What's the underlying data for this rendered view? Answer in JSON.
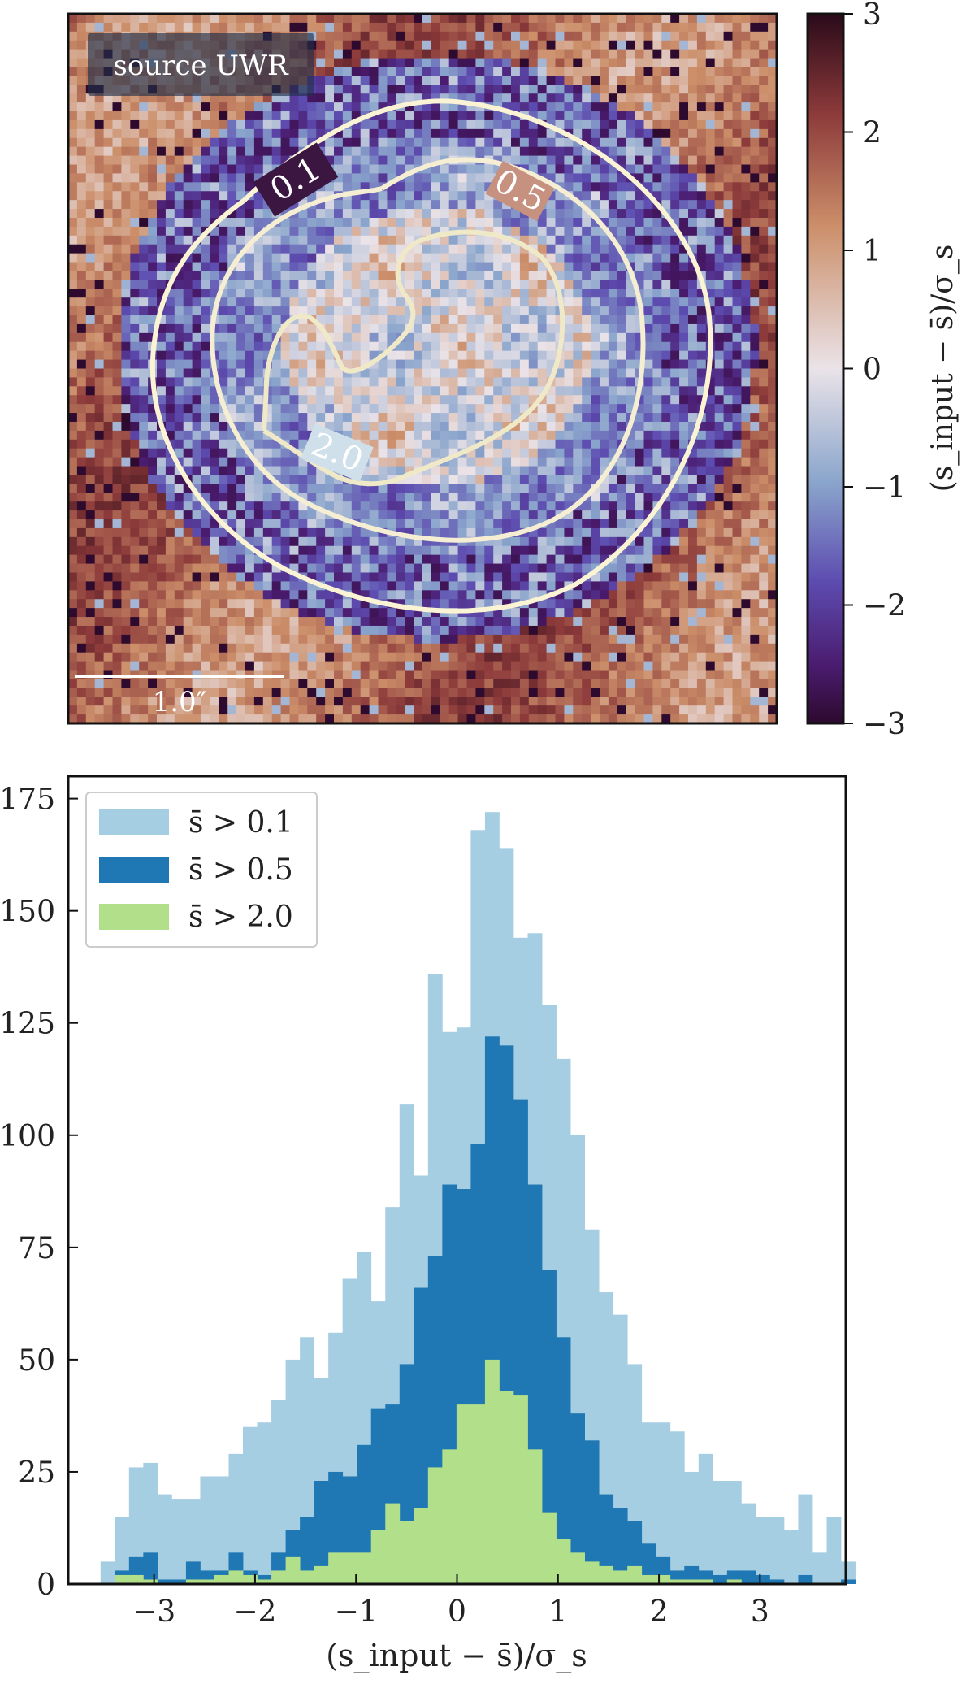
{
  "chart_data": [
    {
      "type": "heatmap",
      "panel_label": "source UWR",
      "colorbar": {
        "label": "(s_input − s̄)/σ_s",
        "range": [
          -3,
          3
        ],
        "ticks": [
          3,
          2,
          1,
          0,
          -1,
          -2,
          -3
        ],
        "tick_labels": [
          "3",
          "2",
          "1",
          "0",
          "−1",
          "−2",
          "−3"
        ],
        "colormap": [
          "#2d0a2e",
          "#4a1b6e",
          "#5d4cb0",
          "#8aa5cc",
          "#eae3e8",
          "#cc8f6a",
          "#8c3a3a",
          "#2a0a1a"
        ]
      },
      "contours": [
        {
          "level": "0.1",
          "color": "#fbf4d4"
        },
        {
          "level": "0.5",
          "color": "#fbf4d4"
        },
        {
          "level": "2.0",
          "color": "#fbf4d4"
        }
      ],
      "scale_bar": {
        "label": "1.0″",
        "length_arcsec": 1.0
      }
    },
    {
      "type": "bar",
      "subtype": "histogram",
      "xlabel": "(s_input − s̄)/σ_s",
      "ylabel": "",
      "xlim": [
        -3.85,
        3.85
      ],
      "ylim": [
        0,
        180
      ],
      "xticks": [
        -3,
        -2,
        -1,
        0,
        1,
        2,
        3
      ],
      "xtick_labels": [
        "−3",
        "−2",
        "−1",
        "0",
        "1",
        "2",
        "3"
      ],
      "yticks": [
        0,
        25,
        50,
        75,
        100,
        125,
        150,
        175
      ],
      "ytick_labels": [
        "0",
        "25",
        "50",
        "75",
        "100",
        "125",
        "150",
        "175"
      ],
      "bin_width": 0.141,
      "bins_start": -3.53,
      "legend_position": "top-left",
      "series": [
        {
          "name": "s̄ > 0.1",
          "color": "#a6cee3",
          "values": [
            5,
            15,
            26,
            27,
            20,
            19,
            19,
            24,
            24,
            29,
            35,
            36,
            41,
            50,
            55,
            46,
            56,
            68,
            74,
            63,
            84,
            107,
            91,
            136,
            123,
            124,
            168,
            172,
            164,
            144,
            145,
            129,
            117,
            100,
            79,
            65,
            60,
            49,
            36,
            36,
            34,
            25,
            29,
            23,
            23,
            18,
            15,
            15,
            12,
            20,
            7,
            15,
            5
          ]
        },
        {
          "name": "s̄ > 0.5",
          "color": "#1f78b4",
          "values": [
            0,
            3,
            6,
            7,
            1,
            1,
            5,
            3,
            3,
            7,
            3,
            2,
            7,
            12,
            15,
            23,
            25,
            24,
            31,
            39,
            40,
            49,
            66,
            73,
            89,
            88,
            98,
            122,
            120,
            108,
            89,
            70,
            55,
            38,
            32,
            20,
            17,
            14,
            9,
            6,
            3,
            4,
            3,
            2,
            3,
            3,
            2,
            1,
            0,
            2,
            0,
            0,
            1
          ]
        },
        {
          "name": "s̄ > 2.0",
          "color": "#b2df8a",
          "values": [
            0,
            2,
            2,
            1,
            0,
            0,
            1,
            1,
            2,
            3,
            2,
            1,
            3,
            6,
            3,
            4,
            7,
            7,
            7,
            12,
            18,
            14,
            17,
            26,
            30,
            40,
            40,
            50,
            43,
            42,
            30,
            16,
            10,
            7,
            5,
            4,
            3,
            4,
            2,
            2,
            1,
            1,
            1,
            0,
            1,
            0,
            0,
            0,
            0,
            0,
            0,
            0,
            0
          ]
        }
      ]
    }
  ]
}
